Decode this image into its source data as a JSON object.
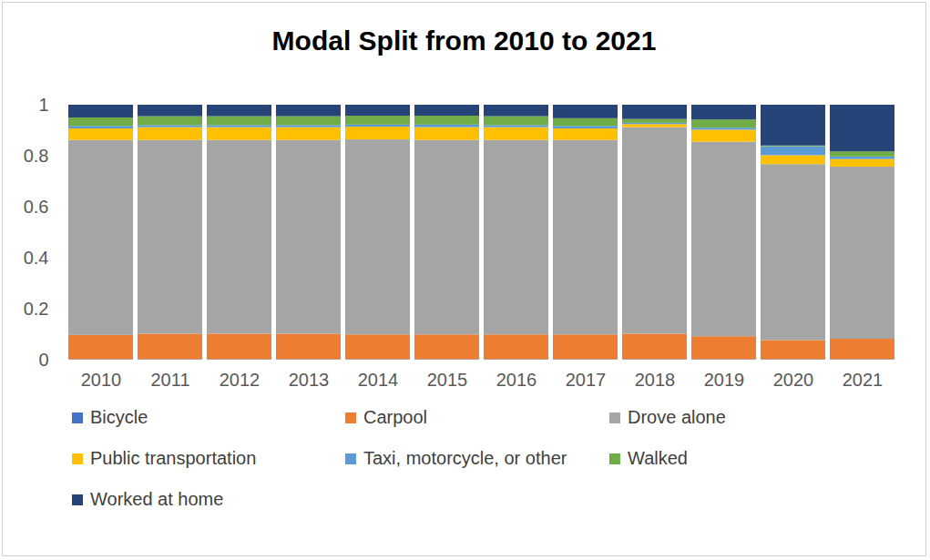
{
  "chart_data": {
    "type": "bar",
    "stacked": true,
    "title": "Modal Split from 2010 to 2021",
    "categories": [
      "2010",
      "2011",
      "2012",
      "2013",
      "2014",
      "2015",
      "2016",
      "2017",
      "2018",
      "2019",
      "2020",
      "2021"
    ],
    "ylim": [
      0,
      1
    ],
    "yticks": [
      0,
      0.2,
      0.4,
      0.6,
      0.8,
      1
    ],
    "grid": false,
    "legend": "bottom",
    "series": [
      {
        "name": "Bicycle",
        "color": "#4472c4",
        "values": [
          0.002,
          0.002,
          0.002,
          0.002,
          0.002,
          0.002,
          0.002,
          0.002,
          0.002,
          0.002,
          0.002,
          0.002
        ]
      },
      {
        "name": "Carpool",
        "color": "#ed7d31",
        "values": [
          0.095,
          0.1,
          0.1,
          0.1,
          0.097,
          0.097,
          0.097,
          0.097,
          0.1,
          0.09,
          0.075,
          0.08
        ]
      },
      {
        "name": "Drove alone",
        "color": "#a5a5a5",
        "values": [
          0.765,
          0.76,
          0.76,
          0.76,
          0.765,
          0.763,
          0.763,
          0.763,
          0.81,
          0.763,
          0.69,
          0.675
        ]
      },
      {
        "name": "Public transportation",
        "color": "#ffc000",
        "values": [
          0.045,
          0.05,
          0.05,
          0.05,
          0.05,
          0.05,
          0.05,
          0.045,
          0.012,
          0.047,
          0.035,
          0.03
        ]
      },
      {
        "name": "Taxi, motorcycle, or other",
        "color": "#5b9bd5",
        "values": [
          0.01,
          0.008,
          0.008,
          0.008,
          0.008,
          0.01,
          0.008,
          0.01,
          0.005,
          0.008,
          0.035,
          0.01
        ]
      },
      {
        "name": "Walked",
        "color": "#70ad47",
        "values": [
          0.033,
          0.035,
          0.035,
          0.035,
          0.035,
          0.035,
          0.035,
          0.03,
          0.015,
          0.032,
          0.003,
          0.02
        ]
      },
      {
        "name": "Worked at home",
        "color": "#264478",
        "values": [
          0.05,
          0.045,
          0.045,
          0.045,
          0.043,
          0.043,
          0.045,
          0.053,
          0.056,
          0.058,
          0.16,
          0.183
        ]
      }
    ]
  }
}
